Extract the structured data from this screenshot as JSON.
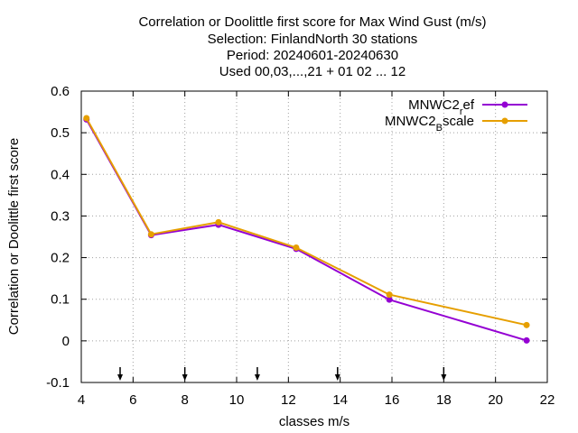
{
  "chart_data": {
    "type": "line",
    "title_lines": [
      "Correlation or Doolittle first score  for Max Wind Gust (m/s)",
      "Selection: FinlandNorth     30 stations",
      "Period: 20240601-20240630",
      "Used 00,03,...,21 + 01 02 ... 12"
    ],
    "xlabel": "classes m/s",
    "ylabel": "Correlation or Doolittle first score",
    "xlim": [
      4,
      22
    ],
    "ylim": [
      -0.1,
      0.6
    ],
    "xticks": [
      4,
      6,
      8,
      10,
      12,
      14,
      16,
      18,
      20,
      22
    ],
    "yticks": [
      -0.1,
      0,
      0.1,
      0.2,
      0.3,
      0.4,
      0.5,
      0.6
    ],
    "xtick_labels": [
      "4",
      "6",
      "8",
      "10",
      "12",
      "14",
      "16",
      "18",
      "20",
      "22"
    ],
    "ytick_labels": [
      "-0.1",
      "0",
      "0.1",
      "0.2",
      "0.3",
      "0.4",
      "0.5",
      "0.6"
    ],
    "grid": true,
    "legend_position": "top-right",
    "class_boundary_arrows": [
      5.5,
      8,
      10.8,
      13.9,
      18
    ],
    "series": [
      {
        "name_main": "MNWC2",
        "name_sub": "r",
        "name_rest": "ef",
        "color": "#9400d3",
        "x": [
          4.2,
          6.7,
          9.3,
          12.3,
          15.9,
          21.2
        ],
        "y": [
          0.532,
          0.254,
          0.279,
          0.221,
          0.099,
          0.001
        ]
      },
      {
        "name_main": "MNWC2",
        "name_sub": "B",
        "name_rest": "scale",
        "color": "#e69f00",
        "x": [
          4.2,
          6.7,
          9.3,
          12.3,
          15.9,
          21.2
        ],
        "y": [
          0.535,
          0.256,
          0.285,
          0.224,
          0.111,
          0.038
        ]
      }
    ]
  }
}
